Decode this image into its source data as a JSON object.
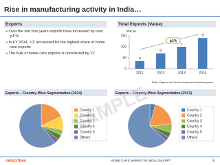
{
  "header": {
    "title": "Rise in manufacturing activity in India…"
  },
  "exports": {
    "heading": "Exports",
    "bullets": [
      "Over the last four years exports have increased by over 'p1'%",
      "In FY 2014, 'c1' accounted for the highest share of home care exports",
      "The bulk of home care exports is constituted by 't1'"
    ]
  },
  "chart_data": [
    {
      "type": "bar",
      "title": "Total Exports (Value)",
      "y_label": "INR bn",
      "categories": [
        "2011",
        "2012",
        "2013",
        "2014"
      ],
      "values": [
        35,
        70,
        100,
        140
      ],
      "bar_labels": [
        "a",
        "b",
        "c",
        "d"
      ],
      "annotation": "p1%",
      "color": "#4a7ebb",
      "ylim": [
        0,
        150
      ],
      "yticks": [
        0,
        50,
        100,
        150
      ],
      "note": "Note: Figures are for the respective financial years"
    },
    {
      "type": "pie",
      "title": "Exports – Country-Wise Segmentation (2014)",
      "categories": [
        "Country 1",
        "Country 2",
        "Country 3",
        "Country 4",
        "Country 5",
        "Others"
      ],
      "values": [
        18,
        10,
        4,
        4,
        3,
        61
      ],
      "colors": [
        "#f79646",
        "#ffd24d",
        "#9bbb59",
        "#4f8a3c",
        "#8064a2",
        "#6e8fb8"
      ]
    },
    {
      "type": "pie",
      "title": "Exports – Country-Wise Segmentation (2013)",
      "categories": [
        "Country 1",
        "Country 2",
        "Country 3",
        "Country 4",
        "Country 5",
        "Others"
      ],
      "values": [
        4,
        20,
        6,
        4,
        3,
        63
      ],
      "colors": [
        "#4a7ebb",
        "#f79646",
        "#9bbb59",
        "#4f8a3c",
        "#8064a2",
        "#6e8fb8"
      ]
    }
  ],
  "watermark": "SAMPLE",
  "footer": {
    "logo": "netscribes",
    "text": "HOME CARE MARKET IN INDIA 2014.PPT",
    "page": "9"
  }
}
